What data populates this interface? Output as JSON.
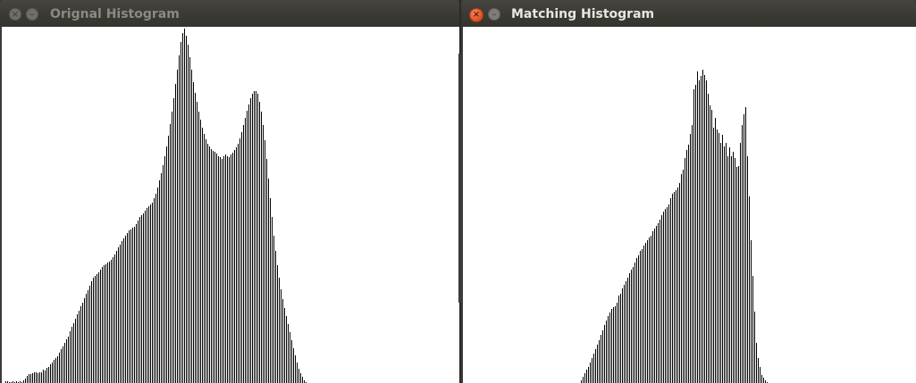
{
  "windows": {
    "left": {
      "title": "Orignal Histogram",
      "active": false,
      "histogram": {
        "type": "bar",
        "ylim": [
          0,
          400
        ],
        "values": [
          2,
          2,
          1,
          1,
          2,
          1,
          2,
          1,
          2,
          1,
          3,
          5,
          8,
          10,
          10,
          11,
          12,
          12,
          11,
          12,
          12,
          15,
          14,
          17,
          18,
          21,
          23,
          26,
          28,
          30,
          34,
          38,
          41,
          45,
          49,
          52,
          58,
          63,
          67,
          72,
          77,
          81,
          86,
          90,
          95,
          100,
          104,
          109,
          114,
          118,
          120,
          122,
          124,
          127,
          130,
          132,
          133,
          135,
          136,
          138,
          141,
          144,
          148,
          152,
          155,
          159,
          162,
          165,
          168,
          171,
          172,
          174,
          175,
          178,
          182,
          186,
          188,
          190,
          193,
          196,
          198,
          201,
          203,
          208,
          213,
          220,
          228,
          236,
          245,
          255,
          266,
          278,
          291,
          305,
          320,
          336,
          352,
          368,
          383,
          393,
          398,
          390,
          380,
          366,
          352,
          338,
          326,
          316,
          305,
          296,
          287,
          280,
          274,
          269,
          266,
          263,
          261,
          260,
          258,
          255,
          254,
          252,
          255,
          257,
          255,
          254,
          257,
          259,
          262,
          265,
          269,
          275,
          282,
          290,
          298,
          306,
          313,
          320,
          325,
          328,
          328,
          325,
          316,
          305,
          290,
          273,
          252,
          230,
          208,
          186,
          165,
          148,
          132,
          118,
          105,
          94,
          84,
          75,
          66,
          57,
          48,
          39,
          31,
          23,
          16,
          11,
          7,
          3,
          1
        ]
      }
    },
    "right": {
      "title": "Matching Histogram",
      "active": true,
      "histogram": {
        "type": "bar",
        "ylim": [
          0,
          400
        ],
        "values": [
          0,
          0,
          0,
          0,
          0,
          0,
          0,
          0,
          0,
          0,
          0,
          0,
          0,
          0,
          0,
          0,
          0,
          0,
          0,
          0,
          0,
          0,
          0,
          0,
          0,
          0,
          0,
          0,
          0,
          0,
          0,
          0,
          0,
          0,
          0,
          0,
          0,
          0,
          0,
          0,
          0,
          0,
          0,
          0,
          0,
          0,
          0,
          0,
          0,
          0,
          0,
          0,
          0,
          0,
          0,
          0,
          0,
          0,
          0,
          0,
          0,
          0,
          0,
          0,
          3,
          7,
          11,
          15,
          18,
          23,
          28,
          33,
          38,
          43,
          48,
          54,
          59,
          65,
          70,
          75,
          79,
          83,
          85,
          86,
          90,
          98,
          100,
          106,
          110,
          114,
          118,
          123,
          127,
          130,
          135,
          140,
          143,
          148,
          150,
          154,
          157,
          160,
          163,
          165,
          170,
          173,
          176,
          179,
          183,
          188,
          192,
          195,
          197,
          200,
          208,
          213,
          215,
          217,
          220,
          225,
          235,
          240,
          253,
          262,
          268,
          280,
          290,
          330,
          335,
          350,
          340,
          345,
          352,
          346,
          340,
          325,
          312,
          307,
          287,
          298,
          285,
          281,
          270,
          279,
          266,
          270,
          255,
          265,
          255,
          260,
          253,
          243,
          244,
          270,
          290,
          302,
          310,
          255,
          210,
          160,
          120,
          80,
          45,
          28,
          18,
          9,
          6,
          3,
          1,
          0,
          0,
          0,
          0,
          0,
          0,
          0,
          0,
          0,
          0,
          0,
          0,
          0,
          0,
          0,
          0,
          0,
          0,
          0,
          0,
          0,
          0,
          0,
          0,
          0,
          0,
          0,
          0,
          0,
          0,
          0,
          0,
          0,
          0,
          0,
          0,
          0,
          0,
          0,
          0,
          0,
          0,
          0,
          0,
          0,
          0,
          0,
          0,
          0,
          0,
          0,
          0,
          0,
          0,
          0,
          0,
          0,
          0,
          0,
          0,
          0,
          0,
          0,
          0,
          0,
          0,
          0,
          0,
          0,
          0,
          0,
          0,
          0,
          0,
          0,
          0,
          0,
          0,
          0,
          0,
          0,
          0,
          0,
          0,
          0,
          0,
          0,
          0,
          0,
          0,
          0,
          0,
          0,
          0,
          0,
          0,
          0,
          0,
          0,
          0
        ]
      }
    }
  },
  "icons": {
    "close": "×",
    "minimize": "–"
  },
  "colors": {
    "titlebar": "#3c3b37",
    "canvas": "#ffffff",
    "bars": "#000000",
    "close_active": "#df4b1f"
  }
}
